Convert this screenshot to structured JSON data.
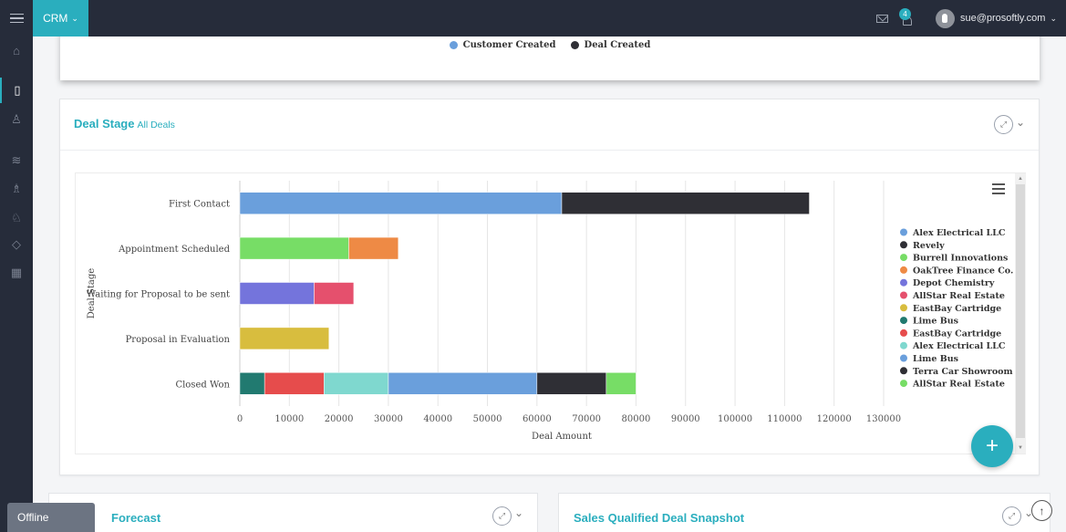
{
  "topbar": {
    "app_name": "CRM",
    "notification_count": "4",
    "user_email": "sue@prosoftly.com"
  },
  "sidebar": {
    "items": [
      {
        "icon": "home-icon",
        "glyph": "⌂"
      },
      {
        "icon": "tablet-icon",
        "glyph": "▯",
        "active": true
      },
      {
        "icon": "user-icon",
        "glyph": "♙"
      },
      {
        "icon": "layers-icon",
        "glyph": "≋"
      },
      {
        "icon": "users-icon",
        "glyph": "♗"
      },
      {
        "icon": "contact-icon",
        "glyph": "♘"
      },
      {
        "icon": "diamond-icon",
        "glyph": "◇"
      },
      {
        "icon": "calendar-icon",
        "glyph": "▦"
      }
    ]
  },
  "previous_chart_legend": [
    {
      "label": "Customer Created",
      "color": "#6a9fdc"
    },
    {
      "label": "Deal Created",
      "color": "#2f2f35"
    }
  ],
  "deal_stage_card": {
    "title": "Deal Stage",
    "subtitle": "All Deals"
  },
  "chart_data": {
    "type": "bar",
    "orientation": "horizontal",
    "stacked": true,
    "xlabel": "Deal Amount",
    "ylabel": "Deal Stage",
    "xlim": [
      0,
      130000
    ],
    "xticks": [
      "0",
      "10000",
      "20000",
      "30000",
      "40000",
      "50000",
      "60000",
      "70000",
      "80000",
      "90000",
      "100000",
      "110000",
      "120000",
      "130000"
    ],
    "grid": true,
    "legend_position": "right",
    "categories": [
      "First Contact",
      "Appointment Scheduled",
      "Waiting for Proposal to be sent",
      "Proposal in Evaluation",
      "Closed Won"
    ],
    "series": [
      {
        "name": "Alex Electrical LLC",
        "color": "#6a9fdc",
        "values": [
          65000,
          0,
          0,
          0,
          0
        ]
      },
      {
        "name": "Revely",
        "color": "#2f2f35",
        "values": [
          50000,
          0,
          0,
          0,
          0
        ]
      },
      {
        "name": "Burrell Innovations",
        "color": "#77dd66",
        "values": [
          0,
          22000,
          0,
          0,
          0
        ]
      },
      {
        "name": "OakTree Finance Co.",
        "color": "#ee8a45",
        "values": [
          0,
          10000,
          0,
          0,
          0
        ]
      },
      {
        "name": "Depot Chemistry",
        "color": "#7474dc",
        "values": [
          0,
          0,
          15000,
          0,
          0
        ]
      },
      {
        "name": "AllStar Real Estate",
        "color": "#e5506d",
        "values": [
          0,
          0,
          8000,
          0,
          0
        ]
      },
      {
        "name": "EastBay Cartridge",
        "color": "#d8bd3e",
        "values": [
          0,
          0,
          0,
          18000,
          0
        ]
      },
      {
        "name": "Lime Bus",
        "color": "#217a70",
        "values": [
          0,
          0,
          0,
          0,
          5000
        ]
      },
      {
        "name": "EastBay Cartridge",
        "color": "#e64c4c",
        "values": [
          0,
          0,
          0,
          0,
          12000
        ]
      },
      {
        "name": "Alex Electrical LLC",
        "color": "#7fd8cf",
        "values": [
          0,
          0,
          0,
          0,
          13000
        ]
      },
      {
        "name": "Lime Bus",
        "color": "#6a9fdc",
        "values": [
          0,
          0,
          0,
          0,
          30000
        ]
      },
      {
        "name": "Terra Car Showroom",
        "color": "#2f2f35",
        "values": [
          0,
          0,
          0,
          0,
          14000
        ]
      },
      {
        "name": "AllStar Real Estate",
        "color": "#77dd66",
        "values": [
          0,
          0,
          0,
          0,
          6000
        ]
      }
    ]
  },
  "bottom_cards": [
    {
      "title": "Forecast"
    },
    {
      "title": "Sales Qualified Deal Snapshot"
    }
  ],
  "status": {
    "offline_label": "Offline"
  }
}
